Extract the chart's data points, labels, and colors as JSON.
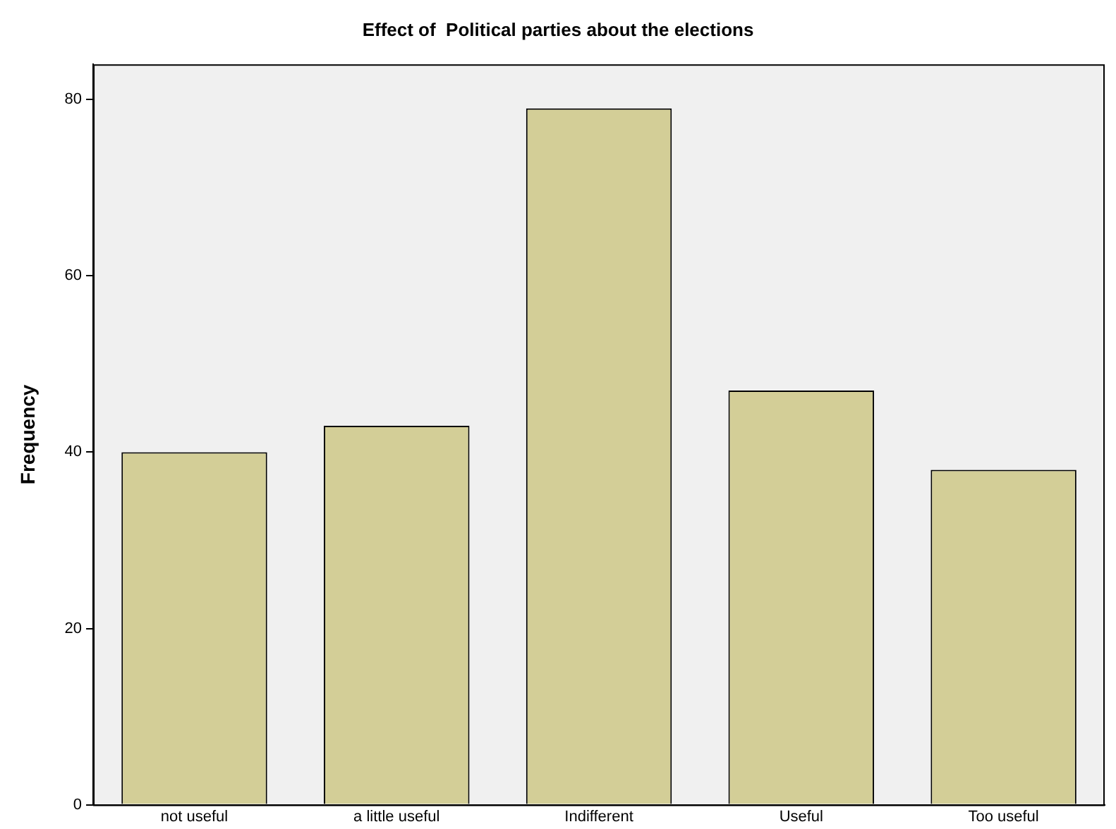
{
  "chart_data": {
    "type": "bar",
    "title": "Effect of  Political parties about the elections",
    "ylabel": "Frequency",
    "categories": [
      "not useful",
      "a little useful",
      "Indifferent",
      "Useful",
      "Too useful"
    ],
    "values": [
      40,
      43,
      79,
      47,
      38
    ],
    "color": "#d3ce97",
    "ylim": [
      0,
      84
    ],
    "yticks": [
      0,
      20,
      40,
      60,
      80
    ],
    "grid": false,
    "legend": false
  }
}
